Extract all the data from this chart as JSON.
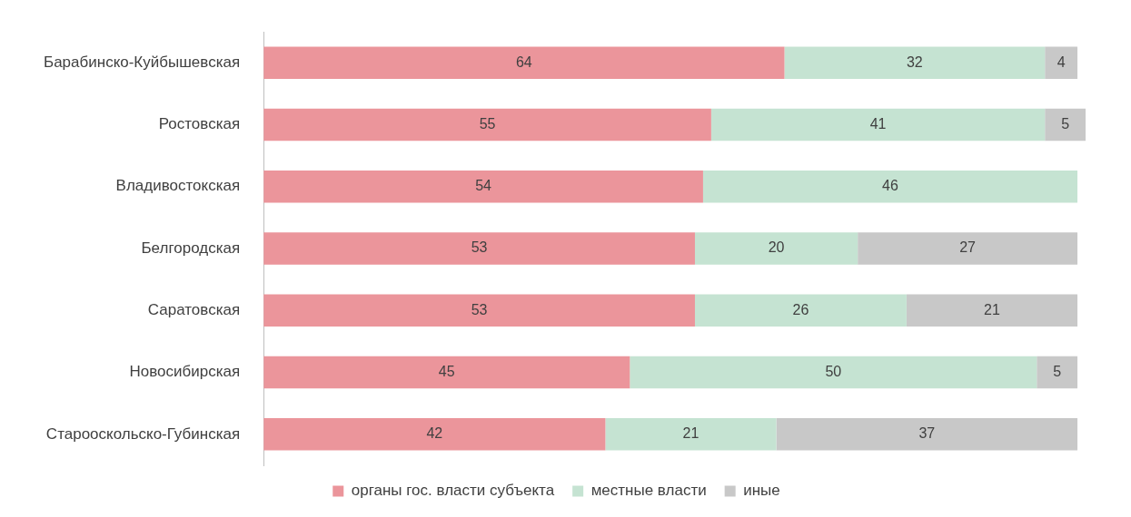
{
  "chart_data": {
    "type": "bar",
    "orientation": "horizontal",
    "stacked": true,
    "data_labels": true,
    "legend": "bottom",
    "categories": [
      "Барабинско-Куйбышевская",
      "Ростовская",
      "Владивостокская",
      "Белгородская",
      "Саратовская",
      "Новосибирская",
      "Старооскольско-Губинская"
    ],
    "series": [
      {
        "name": "органы гос. власти субъекта",
        "color": "#eb959b",
        "values": [
          64,
          55,
          54,
          53,
          53,
          45,
          42
        ]
      },
      {
        "name": "местные власти",
        "color": "#c5e3d2",
        "values": [
          32,
          41,
          46,
          20,
          26,
          50,
          21
        ]
      },
      {
        "name": "иные",
        "color": "#c8c8c8",
        "values": [
          4,
          5,
          null,
          27,
          21,
          5,
          37
        ]
      }
    ]
  }
}
